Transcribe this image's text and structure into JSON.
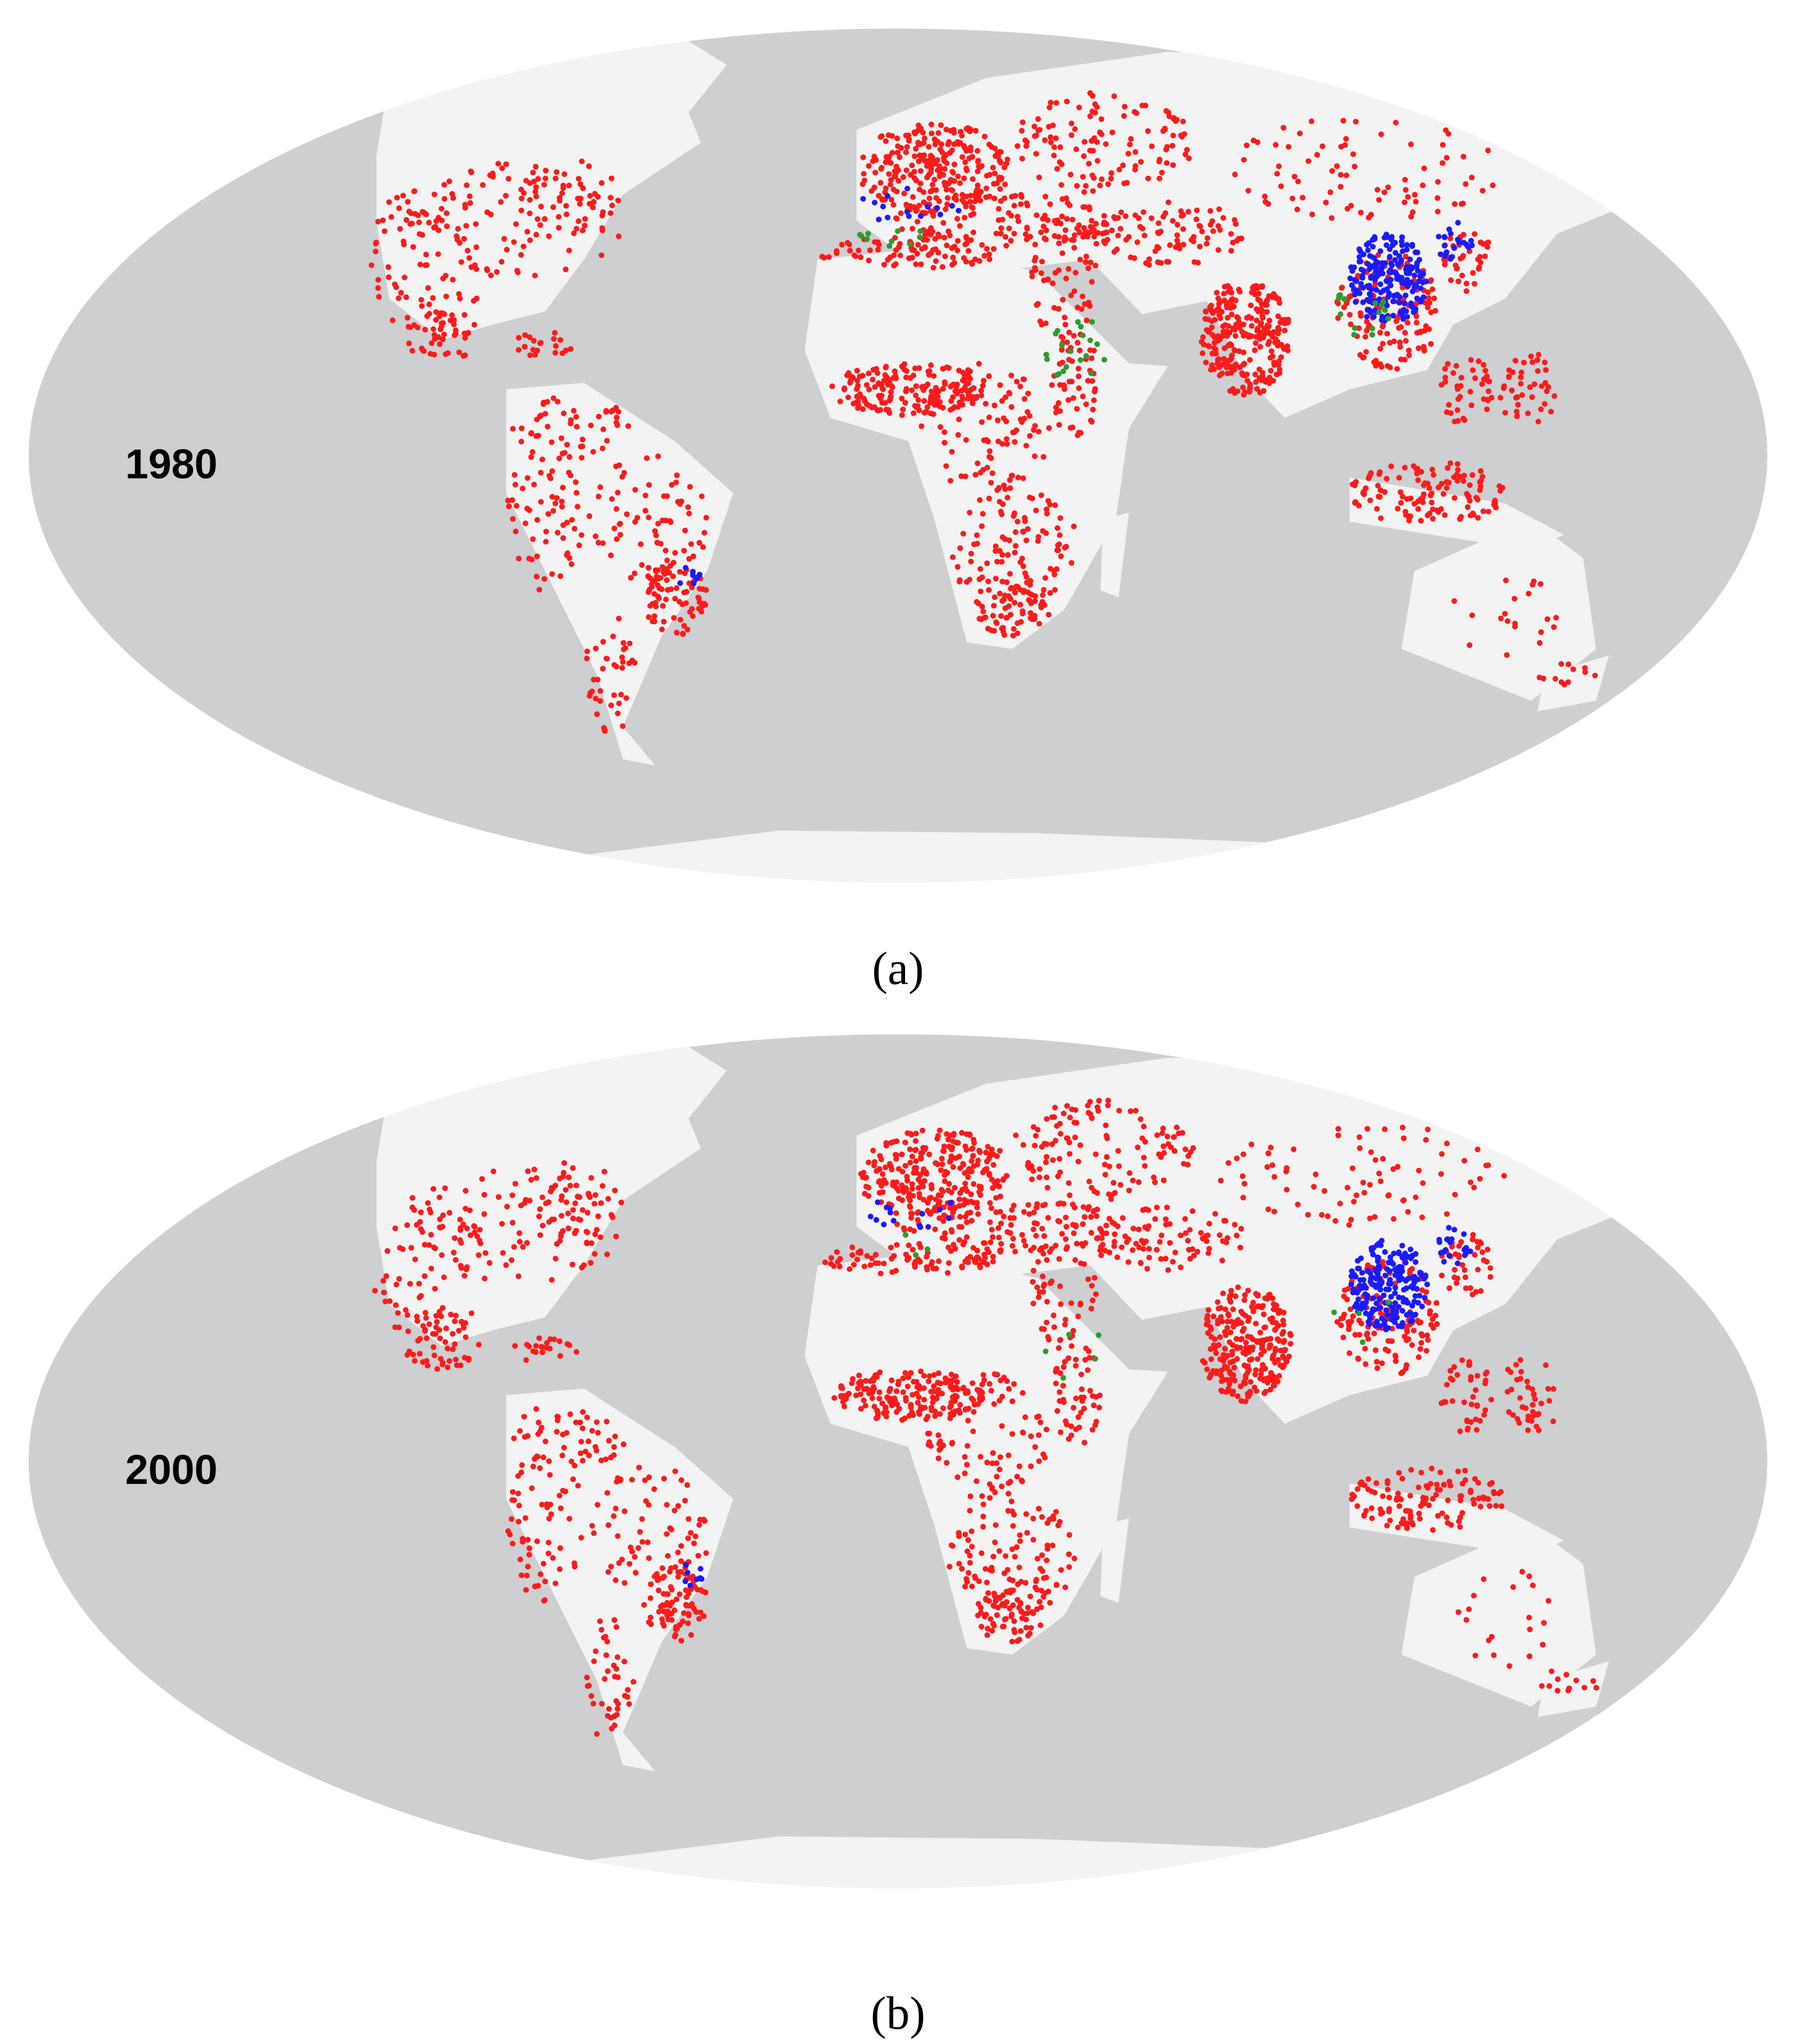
{
  "maps": [
    {
      "label": "1980",
      "caption": "(a)"
    },
    {
      "label": "2000",
      "caption": "(b)"
    }
  ]
}
